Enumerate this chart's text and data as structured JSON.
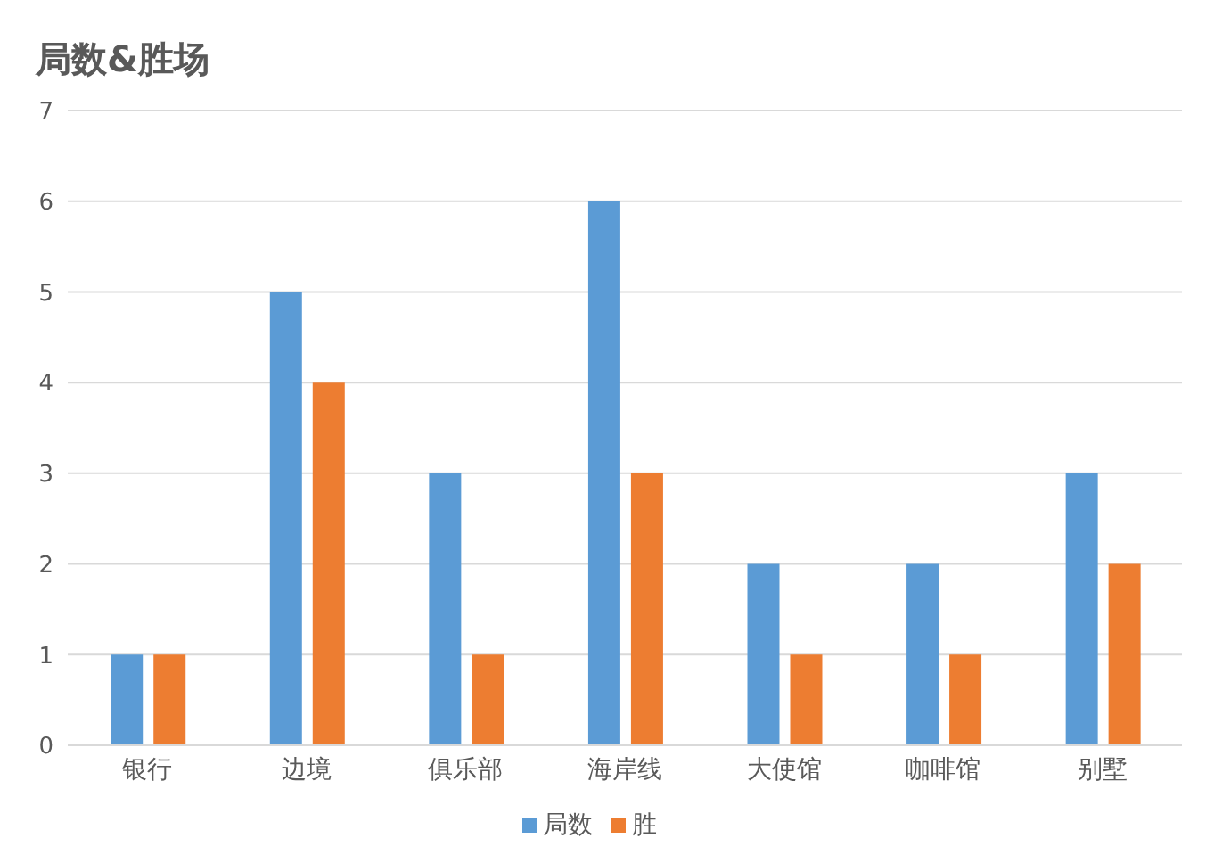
{
  "chart_data": {
    "type": "bar",
    "title": "局数&胜场",
    "categories": [
      "银行",
      "边境",
      "俱乐部",
      "海岸线",
      "大使馆",
      "咖啡馆",
      "别墅"
    ],
    "series": [
      {
        "name": "局数",
        "color": "#5b9bd5",
        "values": [
          1,
          5,
          3,
          6,
          2,
          2,
          3
        ]
      },
      {
        "name": "胜",
        "color": "#ed7d31",
        "values": [
          1,
          4,
          1,
          3,
          1,
          1,
          2
        ]
      }
    ],
    "ylim": [
      0,
      7
    ],
    "yticks": [
      0,
      1,
      2,
      3,
      4,
      5,
      6,
      7
    ],
    "grid": "y",
    "legend": "bottom"
  }
}
